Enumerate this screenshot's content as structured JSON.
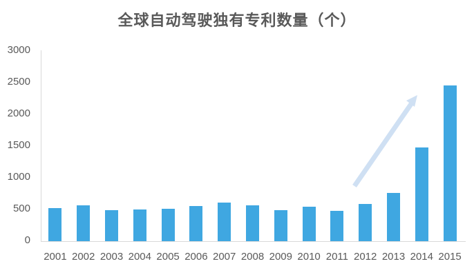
{
  "chart_data": {
    "type": "bar",
    "title": "全球自动驾驶独有专利数量（个）",
    "xlabel": "",
    "ylabel": "",
    "ylim": [
      0,
      3000
    ],
    "yticks": [
      0,
      500,
      1000,
      1500,
      2000,
      2500,
      3000
    ],
    "grid": false,
    "legend": null,
    "categories": [
      "2001",
      "2002",
      "2003",
      "2004",
      "2005",
      "2006",
      "2007",
      "2008",
      "2009",
      "2010",
      "2011",
      "2012",
      "2013",
      "2014",
      "2015"
    ],
    "values": [
      520,
      565,
      485,
      500,
      510,
      550,
      610,
      565,
      485,
      540,
      480,
      590,
      760,
      1480,
      2455
    ],
    "bar_color": "#3fa7e1",
    "annotations": [
      {
        "type": "arrow",
        "description": "upward trend arrow from 2012 toward 2014",
        "color": "#cfe0f3"
      }
    ]
  },
  "labels": {
    "title": "全球自动驾驶独有专利数量（个）",
    "yticks": [
      "0",
      "500",
      "1000",
      "1500",
      "2000",
      "2500",
      "3000"
    ],
    "xticks": [
      "2001",
      "2002",
      "2003",
      "2004",
      "2005",
      "2006",
      "2007",
      "2008",
      "2009",
      "2010",
      "2011",
      "2012",
      "2013",
      "2014",
      "2015"
    ]
  }
}
